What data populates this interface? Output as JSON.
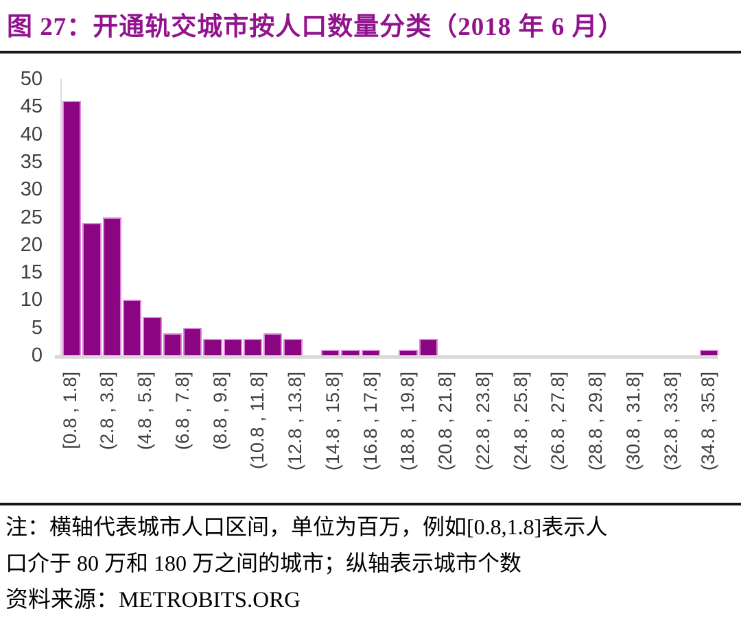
{
  "title": "图 27：开通轨交城市按人口数量分类（2018 年 6 月）",
  "chart_data": {
    "type": "bar",
    "title": "开通轨交城市按人口数量分类（2018 年 6 月）",
    "categories": [
      "[0.8 , 1.8]",
      "(1.8 , 2.8]",
      "(2.8 , 3.8]",
      "(3.8 , 4.8]",
      "(4.8 , 5.8]",
      "(5.8 , 6.8]",
      "(6.8 , 7.8]",
      "(7.8 , 8.8]",
      "(8.8 , 9.8]",
      "(9.8 , 10.8]",
      "(10.8 , 11.8]",
      "(11.8 , 12.8]",
      "(12.8 , 13.8]",
      "(13.8 , 14.8]",
      "(14.8 , 15.8]",
      "(15.8 , 16.8]",
      "(16.8 , 17.8]",
      "(17.8 , 18.8]",
      "(18.8 , 19.8]",
      "(19.8 , 20.8]",
      "(20.8 , 21.8]",
      "(21.8 , 22.8]",
      "(22.8 , 23.8]",
      "(23.8 , 24.8]",
      "(24.8 , 25.8]",
      "(25.8 , 26.8]",
      "(26.8 , 27.8]",
      "(27.8 , 28.8]",
      "(28.8 , 29.8]",
      "(29.8 , 30.8]",
      "(30.8 , 31.8]",
      "(31.8 , 32.8]",
      "(32.8 , 33.8]",
      "(33.8 , 34.8]",
      "(34.8 , 35.8]"
    ],
    "values": [
      46,
      24,
      25,
      10,
      7,
      4,
      5,
      3,
      3,
      3,
      4,
      3,
      0,
      1,
      1,
      1,
      0,
      1,
      3,
      0,
      0,
      0,
      0,
      0,
      0,
      0,
      0,
      0,
      0,
      0,
      0,
      0,
      0,
      0,
      1
    ],
    "x_tick_labels": [
      "[0.8 , 1.8]",
      "(2.8 , 3.8]",
      "(4.8 , 5.8]",
      "(6.8 , 7.8]",
      "(8.8 , 9.8]",
      "(10.8 , 11.8]",
      "(12.8 , 13.8]",
      "(14.8 , 15.8]",
      "(16.8 , 17.8]",
      "(18.8 , 19.8]",
      "(20.8 , 21.8]",
      "(22.8 , 23.8]",
      "(24.8 , 25.8]",
      "(26.8 , 27.8]",
      "(28.8 , 29.8]",
      "(30.8 , 31.8]",
      "(32.8 , 33.8]",
      "(34.8 , 35.8]"
    ],
    "x_tick_every_n_bins": 2,
    "y_ticks": [
      0,
      5,
      10,
      15,
      20,
      25,
      30,
      35,
      40,
      45,
      50
    ],
    "ylim": [
      0,
      50
    ],
    "xlabel": "",
    "ylabel": "",
    "grid": "off",
    "legend": "none"
  },
  "note": {
    "line1": "注：横轴代表城市人口区间，单位为百万，例如[0.8,1.8]表示人",
    "line2": "口介于 80 万和 180 万之间的城市；纵轴表示城市个数"
  },
  "source": "资料来源：METROBITS.ORG",
  "colors": {
    "title": "#92138E",
    "bar_fill": "#8B0482",
    "bar_border": "#E184DB",
    "axis": "#D9D9D9",
    "tick_text": "#3F3F3F",
    "rule": "#161616",
    "text": "#000000"
  }
}
